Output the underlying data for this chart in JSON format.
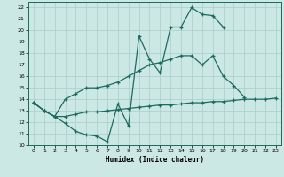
{
  "xlabel": "Humidex (Indice chaleur)",
  "bg_color": "#cce8e5",
  "grid_color": "#aaccca",
  "line_color": "#1a6b60",
  "xlim": [
    -0.5,
    23.5
  ],
  "ylim": [
    10,
    22.5
  ],
  "xticks": [
    0,
    1,
    2,
    3,
    4,
    5,
    6,
    7,
    8,
    9,
    10,
    11,
    12,
    13,
    14,
    15,
    16,
    17,
    18,
    19,
    20,
    21,
    22,
    23
  ],
  "yticks": [
    10,
    11,
    12,
    13,
    14,
    15,
    16,
    17,
    18,
    19,
    20,
    21,
    22
  ],
  "line1_x": [
    0,
    1,
    2,
    3,
    4,
    5,
    6,
    7,
    8,
    9,
    10,
    11,
    12,
    13,
    14,
    15,
    16,
    17,
    18
  ],
  "line1_y": [
    13.7,
    13.0,
    12.5,
    11.9,
    11.2,
    10.9,
    10.8,
    10.3,
    13.6,
    11.7,
    19.5,
    17.5,
    16.3,
    20.3,
    20.3,
    22.0,
    21.4,
    21.3,
    20.3
  ],
  "line2_x": [
    0,
    1,
    2,
    3,
    4,
    5,
    6,
    7,
    8,
    9,
    10,
    11,
    12,
    13,
    14,
    15,
    16,
    17,
    18,
    19,
    20,
    21,
    22,
    23
  ],
  "line2_y": [
    13.7,
    13.0,
    12.5,
    14.0,
    14.5,
    15.0,
    15.0,
    15.2,
    15.5,
    16.0,
    16.5,
    17.0,
    17.2,
    17.5,
    17.8,
    17.8,
    17.0,
    17.8,
    16.0,
    15.2,
    14.2,
    null,
    null,
    null
  ],
  "line3_x": [
    0,
    1,
    2,
    3,
    4,
    5,
    6,
    7,
    8,
    9,
    10,
    11,
    12,
    13,
    14,
    15,
    16,
    17,
    18,
    19,
    20,
    21,
    22,
    23
  ],
  "line3_y": [
    13.7,
    13.0,
    12.5,
    12.5,
    12.7,
    12.9,
    12.9,
    13.0,
    13.1,
    13.2,
    13.3,
    13.4,
    13.5,
    13.5,
    13.6,
    13.7,
    13.7,
    13.8,
    13.8,
    13.9,
    14.0,
    14.0,
    14.0,
    14.1
  ]
}
